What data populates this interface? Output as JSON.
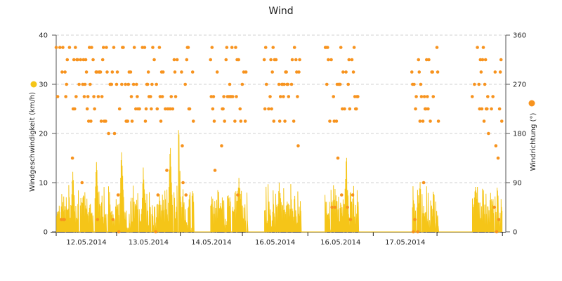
{
  "chart_data": {
    "type": "line",
    "title": "Wind",
    "colors": {
      "speed": "#F5C518",
      "direction": "#F7931E",
      "grid": "#d0d0d0"
    },
    "legend": "axis-markers",
    "grid": true,
    "x_labels": [
      "12.05.2014",
      "13.05.2014",
      "14.05.2014",
      "16.05.2014",
      "16.05.2014",
      "17.05.2014"
    ],
    "y_left": {
      "label": "Windgeschwindigkeit (km/h)",
      "ticks": [
        0,
        10,
        20,
        30,
        40
      ],
      "range": [
        0,
        40
      ]
    },
    "y_right": {
      "label": "Windrichtung (°)",
      "ticks": [
        0,
        90,
        180,
        270,
        360
      ],
      "range": [
        0,
        360
      ]
    },
    "series": [
      {
        "name": "Windgeschwindigkeit (km/h)",
        "type": "bar-line",
        "axis": "left",
        "peaks": [
          {
            "at": 0.5,
            "height": 11.5
          },
          {
            "at": 1.2,
            "height": 14
          },
          {
            "at": 1.95,
            "height": 16
          },
          {
            "at": 2.6,
            "height": 12
          },
          {
            "at": 3.4,
            "height": 17
          },
          {
            "at": 3.65,
            "height": 21.5
          },
          {
            "at": 4.2,
            "height": 13
          },
          {
            "at": 5.45,
            "height": 10
          },
          {
            "at": 6.65,
            "height": 10
          },
          {
            "at": 7.65,
            "height": 9
          },
          {
            "at": 8.65,
            "height": 15
          },
          {
            "at": 10.85,
            "height": 9.5
          },
          {
            "at": 12.5,
            "height": 9.5
          }
        ]
      },
      {
        "name": "Windrichtung (°)",
        "type": "scatter",
        "axis": "right",
        "clusters": [
          {
            "from": 0,
            "to": 1.8
          },
          {
            "from": 1.8,
            "to": 4.1
          },
          {
            "from": 4.6,
            "to": 5.7
          },
          {
            "from": 6.2,
            "to": 7.3
          },
          {
            "from": 8.0,
            "to": 9.0
          },
          {
            "from": 10.6,
            "to": 11.4
          },
          {
            "from": 12.4,
            "to": 13.3
          }
        ]
      }
    ]
  }
}
